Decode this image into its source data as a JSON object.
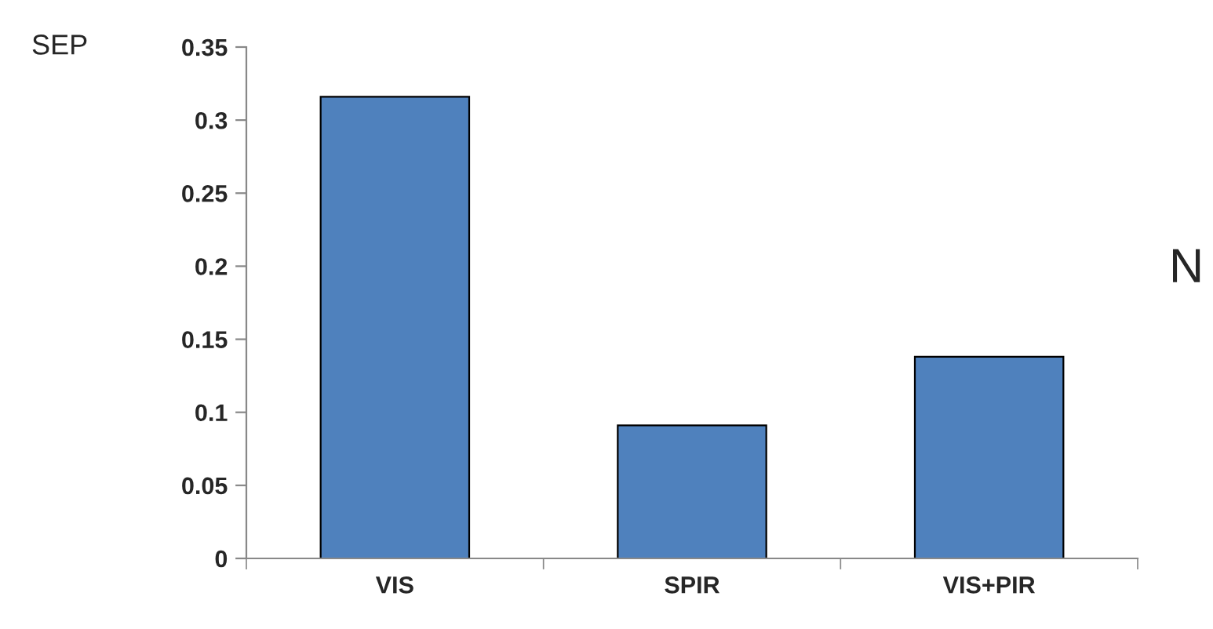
{
  "chart_data": {
    "type": "bar",
    "ylabel": "SEP",
    "annotations": [
      "N"
    ],
    "categories": [
      "VIS",
      "SPIR",
      "VIS+PIR"
    ],
    "values": [
      0.316,
      0.091,
      0.138
    ],
    "color": "#4f81bd",
    "ylim": [
      0,
      0.35
    ],
    "yticks": [
      {
        "value": 0,
        "label": "0"
      },
      0.05,
      {
        "value": 0.1,
        "label": "0.1"
      },
      0.15,
      {
        "value": 0.2,
        "label": "0.2"
      },
      0.25,
      {
        "value": 0.3,
        "label": "0.3"
      },
      0.35
    ],
    "grid": false,
    "legend": false
  }
}
